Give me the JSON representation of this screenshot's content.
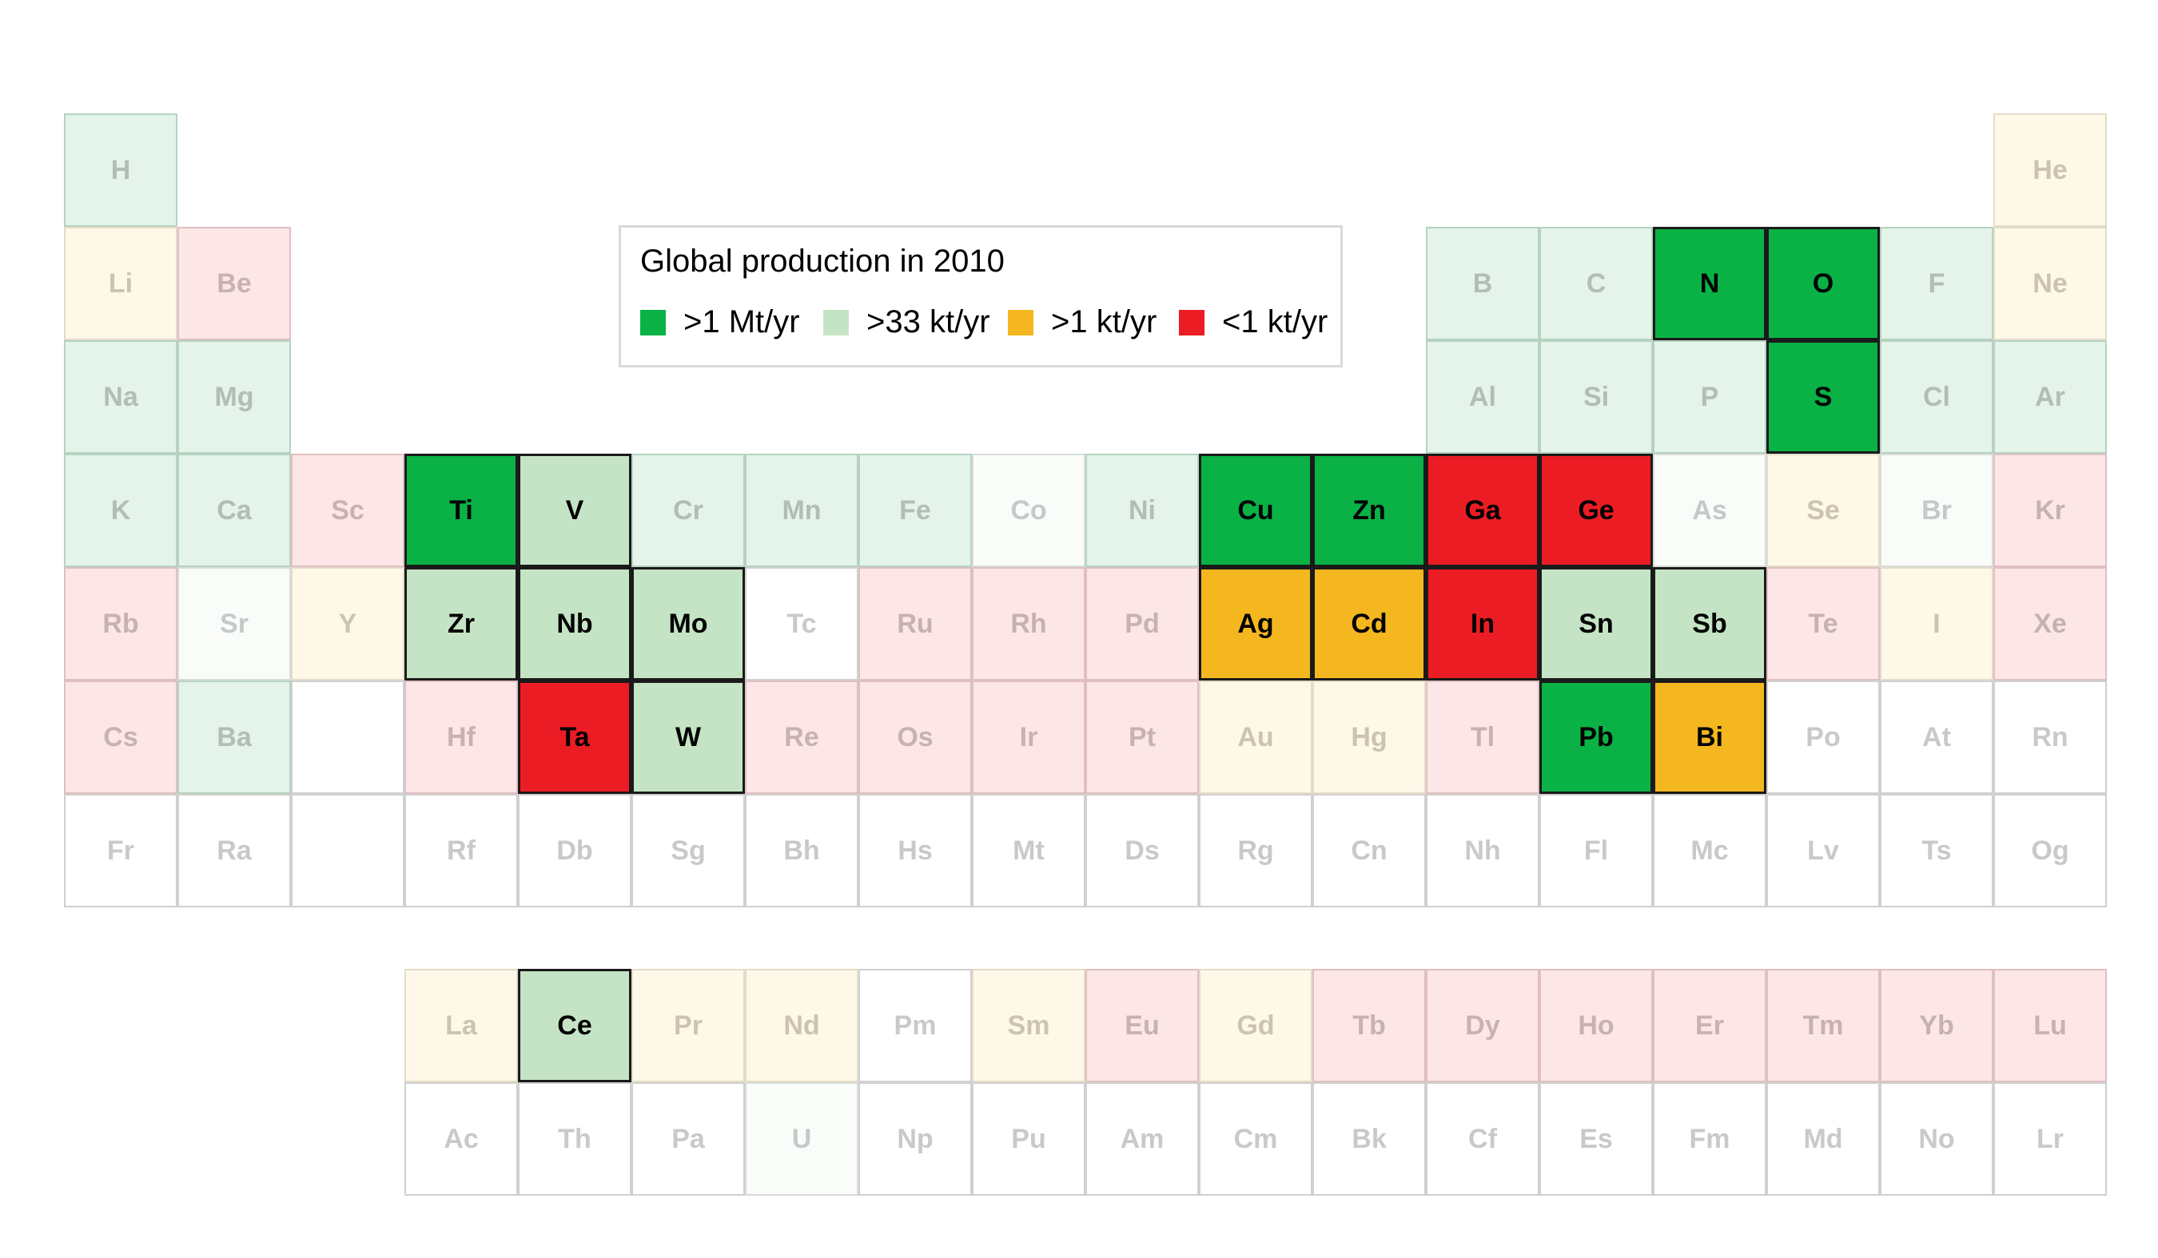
{
  "legend": {
    "title": "Global production in 2010",
    "items": [
      {
        "key": "gt1mt",
        "label": ">1 Mt/yr",
        "color": "#0ab145"
      },
      {
        "key": "gt33kt",
        "label": ">33 kt/yr",
        "color": "#c5e4c5"
      },
      {
        "key": "gt1kt",
        "label": ">1 kt/yr",
        "color": "#f5b71f"
      },
      {
        "key": "lt1kt",
        "label": "<1 kt/yr",
        "color": "#ec1c24"
      }
    ]
  },
  "elements": [
    {
      "symbol": "H",
      "row": 1,
      "col": 1,
      "category": "green"
    },
    {
      "symbol": "He",
      "row": 1,
      "col": 18,
      "category": "orange"
    },
    {
      "symbol": "Li",
      "row": 2,
      "col": 1,
      "category": "orange"
    },
    {
      "symbol": "Be",
      "row": 2,
      "col": 2,
      "category": "red"
    },
    {
      "symbol": "B",
      "row": 2,
      "col": 13,
      "category": "green"
    },
    {
      "symbol": "C",
      "row": 2,
      "col": 14,
      "category": "green"
    },
    {
      "symbol": "N",
      "row": 2,
      "col": 15,
      "category": "gt1mt",
      "highlight": true
    },
    {
      "symbol": "O",
      "row": 2,
      "col": 16,
      "category": "gt1mt",
      "highlight": true
    },
    {
      "symbol": "F",
      "row": 2,
      "col": 17,
      "category": "green"
    },
    {
      "symbol": "Ne",
      "row": 2,
      "col": 18,
      "category": "orange"
    },
    {
      "symbol": "Na",
      "row": 3,
      "col": 1,
      "category": "green"
    },
    {
      "symbol": "Mg",
      "row": 3,
      "col": 2,
      "category": "green"
    },
    {
      "symbol": "Al",
      "row": 3,
      "col": 13,
      "category": "green"
    },
    {
      "symbol": "Si",
      "row": 3,
      "col": 14,
      "category": "green"
    },
    {
      "symbol": "P",
      "row": 3,
      "col": 15,
      "category": "green"
    },
    {
      "symbol": "S",
      "row": 3,
      "col": 16,
      "category": "gt1mt",
      "highlight": true
    },
    {
      "symbol": "Cl",
      "row": 3,
      "col": 17,
      "category": "green"
    },
    {
      "symbol": "Ar",
      "row": 3,
      "col": 18,
      "category": "green"
    },
    {
      "symbol": "K",
      "row": 4,
      "col": 1,
      "category": "green"
    },
    {
      "symbol": "Ca",
      "row": 4,
      "col": 2,
      "category": "green"
    },
    {
      "symbol": "Sc",
      "row": 4,
      "col": 3,
      "category": "red"
    },
    {
      "symbol": "Ti",
      "row": 4,
      "col": 4,
      "category": "gt1mt",
      "highlight": true
    },
    {
      "symbol": "V",
      "row": 4,
      "col": 5,
      "category": "gt33kt",
      "highlight": true
    },
    {
      "symbol": "Cr",
      "row": 4,
      "col": 6,
      "category": "green"
    },
    {
      "symbol": "Mn",
      "row": 4,
      "col": 7,
      "category": "green"
    },
    {
      "symbol": "Fe",
      "row": 4,
      "col": 8,
      "category": "green"
    },
    {
      "symbol": "Co",
      "row": 4,
      "col": 9,
      "category": "lgreen"
    },
    {
      "symbol": "Ni",
      "row": 4,
      "col": 10,
      "category": "green"
    },
    {
      "symbol": "Cu",
      "row": 4,
      "col": 11,
      "category": "gt1mt",
      "highlight": true
    },
    {
      "symbol": "Zn",
      "row": 4,
      "col": 12,
      "category": "gt1mt",
      "highlight": true
    },
    {
      "symbol": "Ga",
      "row": 4,
      "col": 13,
      "category": "lt1kt",
      "highlight": true
    },
    {
      "symbol": "Ge",
      "row": 4,
      "col": 14,
      "category": "lt1kt",
      "highlight": true
    },
    {
      "symbol": "As",
      "row": 4,
      "col": 15,
      "category": "lgreen"
    },
    {
      "symbol": "Se",
      "row": 4,
      "col": 16,
      "category": "orange"
    },
    {
      "symbol": "Br",
      "row": 4,
      "col": 17,
      "category": "lgreen"
    },
    {
      "symbol": "Kr",
      "row": 4,
      "col": 18,
      "category": "red"
    },
    {
      "symbol": "Rb",
      "row": 5,
      "col": 1,
      "category": "red"
    },
    {
      "symbol": "Sr",
      "row": 5,
      "col": 2,
      "category": "lgreen"
    },
    {
      "symbol": "Y",
      "row": 5,
      "col": 3,
      "category": "orange"
    },
    {
      "symbol": "Zr",
      "row": 5,
      "col": 4,
      "category": "gt33kt",
      "highlight": true
    },
    {
      "symbol": "Nb",
      "row": 5,
      "col": 5,
      "category": "gt33kt",
      "highlight": true
    },
    {
      "symbol": "Mo",
      "row": 5,
      "col": 6,
      "category": "gt33kt",
      "highlight": true
    },
    {
      "symbol": "Tc",
      "row": 5,
      "col": 7,
      "category": "none"
    },
    {
      "symbol": "Ru",
      "row": 5,
      "col": 8,
      "category": "red"
    },
    {
      "symbol": "Rh",
      "row": 5,
      "col": 9,
      "category": "red"
    },
    {
      "symbol": "Pd",
      "row": 5,
      "col": 10,
      "category": "red"
    },
    {
      "symbol": "Ag",
      "row": 5,
      "col": 11,
      "category": "gt1kt",
      "highlight": true
    },
    {
      "symbol": "Cd",
      "row": 5,
      "col": 12,
      "category": "gt1kt",
      "highlight": true
    },
    {
      "symbol": "In",
      "row": 5,
      "col": 13,
      "category": "lt1kt",
      "highlight": true
    },
    {
      "symbol": "Sn",
      "row": 5,
      "col": 14,
      "category": "gt33kt",
      "highlight": true
    },
    {
      "symbol": "Sb",
      "row": 5,
      "col": 15,
      "category": "gt33kt",
      "highlight": true
    },
    {
      "symbol": "Te",
      "row": 5,
      "col": 16,
      "category": "red"
    },
    {
      "symbol": "I",
      "row": 5,
      "col": 17,
      "category": "orange"
    },
    {
      "symbol": "Xe",
      "row": 5,
      "col": 18,
      "category": "red"
    },
    {
      "symbol": "Cs",
      "row": 6,
      "col": 1,
      "category": "red"
    },
    {
      "symbol": "Ba",
      "row": 6,
      "col": 2,
      "category": "green"
    },
    {
      "symbol": "Hf",
      "row": 6,
      "col": 4,
      "category": "red"
    },
    {
      "symbol": "Ta",
      "row": 6,
      "col": 5,
      "category": "lt1kt",
      "highlight": true
    },
    {
      "symbol": "W",
      "row": 6,
      "col": 6,
      "category": "gt33kt",
      "highlight": true
    },
    {
      "symbol": "Re",
      "row": 6,
      "col": 7,
      "category": "red"
    },
    {
      "symbol": "Os",
      "row": 6,
      "col": 8,
      "category": "red"
    },
    {
      "symbol": "Ir",
      "row": 6,
      "col": 9,
      "category": "red"
    },
    {
      "symbol": "Pt",
      "row": 6,
      "col": 10,
      "category": "red"
    },
    {
      "symbol": "Au",
      "row": 6,
      "col": 11,
      "category": "orange"
    },
    {
      "symbol": "Hg",
      "row": 6,
      "col": 12,
      "category": "orange"
    },
    {
      "symbol": "Tl",
      "row": 6,
      "col": 13,
      "category": "red"
    },
    {
      "symbol": "Pb",
      "row": 6,
      "col": 14,
      "category": "gt1mt",
      "highlight": true
    },
    {
      "symbol": "Bi",
      "row": 6,
      "col": 15,
      "category": "gt1kt",
      "highlight": true
    },
    {
      "symbol": "Po",
      "row": 6,
      "col": 16,
      "category": "none"
    },
    {
      "symbol": "At",
      "row": 6,
      "col": 17,
      "category": "none"
    },
    {
      "symbol": "Rn",
      "row": 6,
      "col": 18,
      "category": "none"
    },
    {
      "symbol": "Fr",
      "row": 7,
      "col": 1,
      "category": "none"
    },
    {
      "symbol": "Ra",
      "row": 7,
      "col": 2,
      "category": "none"
    },
    {
      "symbol": "Rf",
      "row": 7,
      "col": 4,
      "category": "none"
    },
    {
      "symbol": "Db",
      "row": 7,
      "col": 5,
      "category": "none"
    },
    {
      "symbol": "Sg",
      "row": 7,
      "col": 6,
      "category": "none"
    },
    {
      "symbol": "Bh",
      "row": 7,
      "col": 7,
      "category": "none"
    },
    {
      "symbol": "Hs",
      "row": 7,
      "col": 8,
      "category": "none"
    },
    {
      "symbol": "Mt",
      "row": 7,
      "col": 9,
      "category": "none"
    },
    {
      "symbol": "Ds",
      "row": 7,
      "col": 10,
      "category": "none"
    },
    {
      "symbol": "Rg",
      "row": 7,
      "col": 11,
      "category": "none"
    },
    {
      "symbol": "Cn",
      "row": 7,
      "col": 12,
      "category": "none"
    },
    {
      "symbol": "Nh",
      "row": 7,
      "col": 13,
      "category": "none"
    },
    {
      "symbol": "Fl",
      "row": 7,
      "col": 14,
      "category": "none"
    },
    {
      "symbol": "Mc",
      "row": 7,
      "col": 15,
      "category": "none"
    },
    {
      "symbol": "Lv",
      "row": 7,
      "col": 16,
      "category": "none"
    },
    {
      "symbol": "Ts",
      "row": 7,
      "col": 17,
      "category": "none"
    },
    {
      "symbol": "Og",
      "row": 7,
      "col": 18,
      "category": "none"
    },
    {
      "symbol": "La",
      "row": 9,
      "col": 4,
      "category": "orange"
    },
    {
      "symbol": "Ce",
      "row": 9,
      "col": 5,
      "category": "gt33kt",
      "highlight": true
    },
    {
      "symbol": "Pr",
      "row": 9,
      "col": 6,
      "category": "orange"
    },
    {
      "symbol": "Nd",
      "row": 9,
      "col": 7,
      "category": "orange"
    },
    {
      "symbol": "Pm",
      "row": 9,
      "col": 8,
      "category": "none"
    },
    {
      "symbol": "Sm",
      "row": 9,
      "col": 9,
      "category": "orange"
    },
    {
      "symbol": "Eu",
      "row": 9,
      "col": 10,
      "category": "red"
    },
    {
      "symbol": "Gd",
      "row": 9,
      "col": 11,
      "category": "orange"
    },
    {
      "symbol": "Tb",
      "row": 9,
      "col": 12,
      "category": "red"
    },
    {
      "symbol": "Dy",
      "row": 9,
      "col": 13,
      "category": "red"
    },
    {
      "symbol": "Ho",
      "row": 9,
      "col": 14,
      "category": "red"
    },
    {
      "symbol": "Er",
      "row": 9,
      "col": 15,
      "category": "red"
    },
    {
      "symbol": "Tm",
      "row": 9,
      "col": 16,
      "category": "red"
    },
    {
      "symbol": "Yb",
      "row": 9,
      "col": 17,
      "category": "red"
    },
    {
      "symbol": "Lu",
      "row": 9,
      "col": 18,
      "category": "red"
    },
    {
      "symbol": "Ac",
      "row": 10,
      "col": 4,
      "category": "none"
    },
    {
      "symbol": "Th",
      "row": 10,
      "col": 5,
      "category": "none"
    },
    {
      "symbol": "Pa",
      "row": 10,
      "col": 6,
      "category": "none"
    },
    {
      "symbol": "U",
      "row": 10,
      "col": 7,
      "category": "lgreen"
    },
    {
      "symbol": "Np",
      "row": 10,
      "col": 8,
      "category": "none"
    },
    {
      "symbol": "Pu",
      "row": 10,
      "col": 9,
      "category": "none"
    },
    {
      "symbol": "Am",
      "row": 10,
      "col": 10,
      "category": "none"
    },
    {
      "symbol": "Cm",
      "row": 10,
      "col": 11,
      "category": "none"
    },
    {
      "symbol": "Bk",
      "row": 10,
      "col": 12,
      "category": "none"
    },
    {
      "symbol": "Cf",
      "row": 10,
      "col": 13,
      "category": "none"
    },
    {
      "symbol": "Es",
      "row": 10,
      "col": 14,
      "category": "none"
    },
    {
      "symbol": "Fm",
      "row": 10,
      "col": 15,
      "category": "none"
    },
    {
      "symbol": "Md",
      "row": 10,
      "col": 16,
      "category": "none"
    },
    {
      "symbol": "No",
      "row": 10,
      "col": 17,
      "category": "none"
    },
    {
      "symbol": "Lr",
      "row": 10,
      "col": 18,
      "category": "none"
    }
  ],
  "blank_slots": [
    {
      "row": 6,
      "col": 3
    },
    {
      "row": 7,
      "col": 3
    }
  ]
}
